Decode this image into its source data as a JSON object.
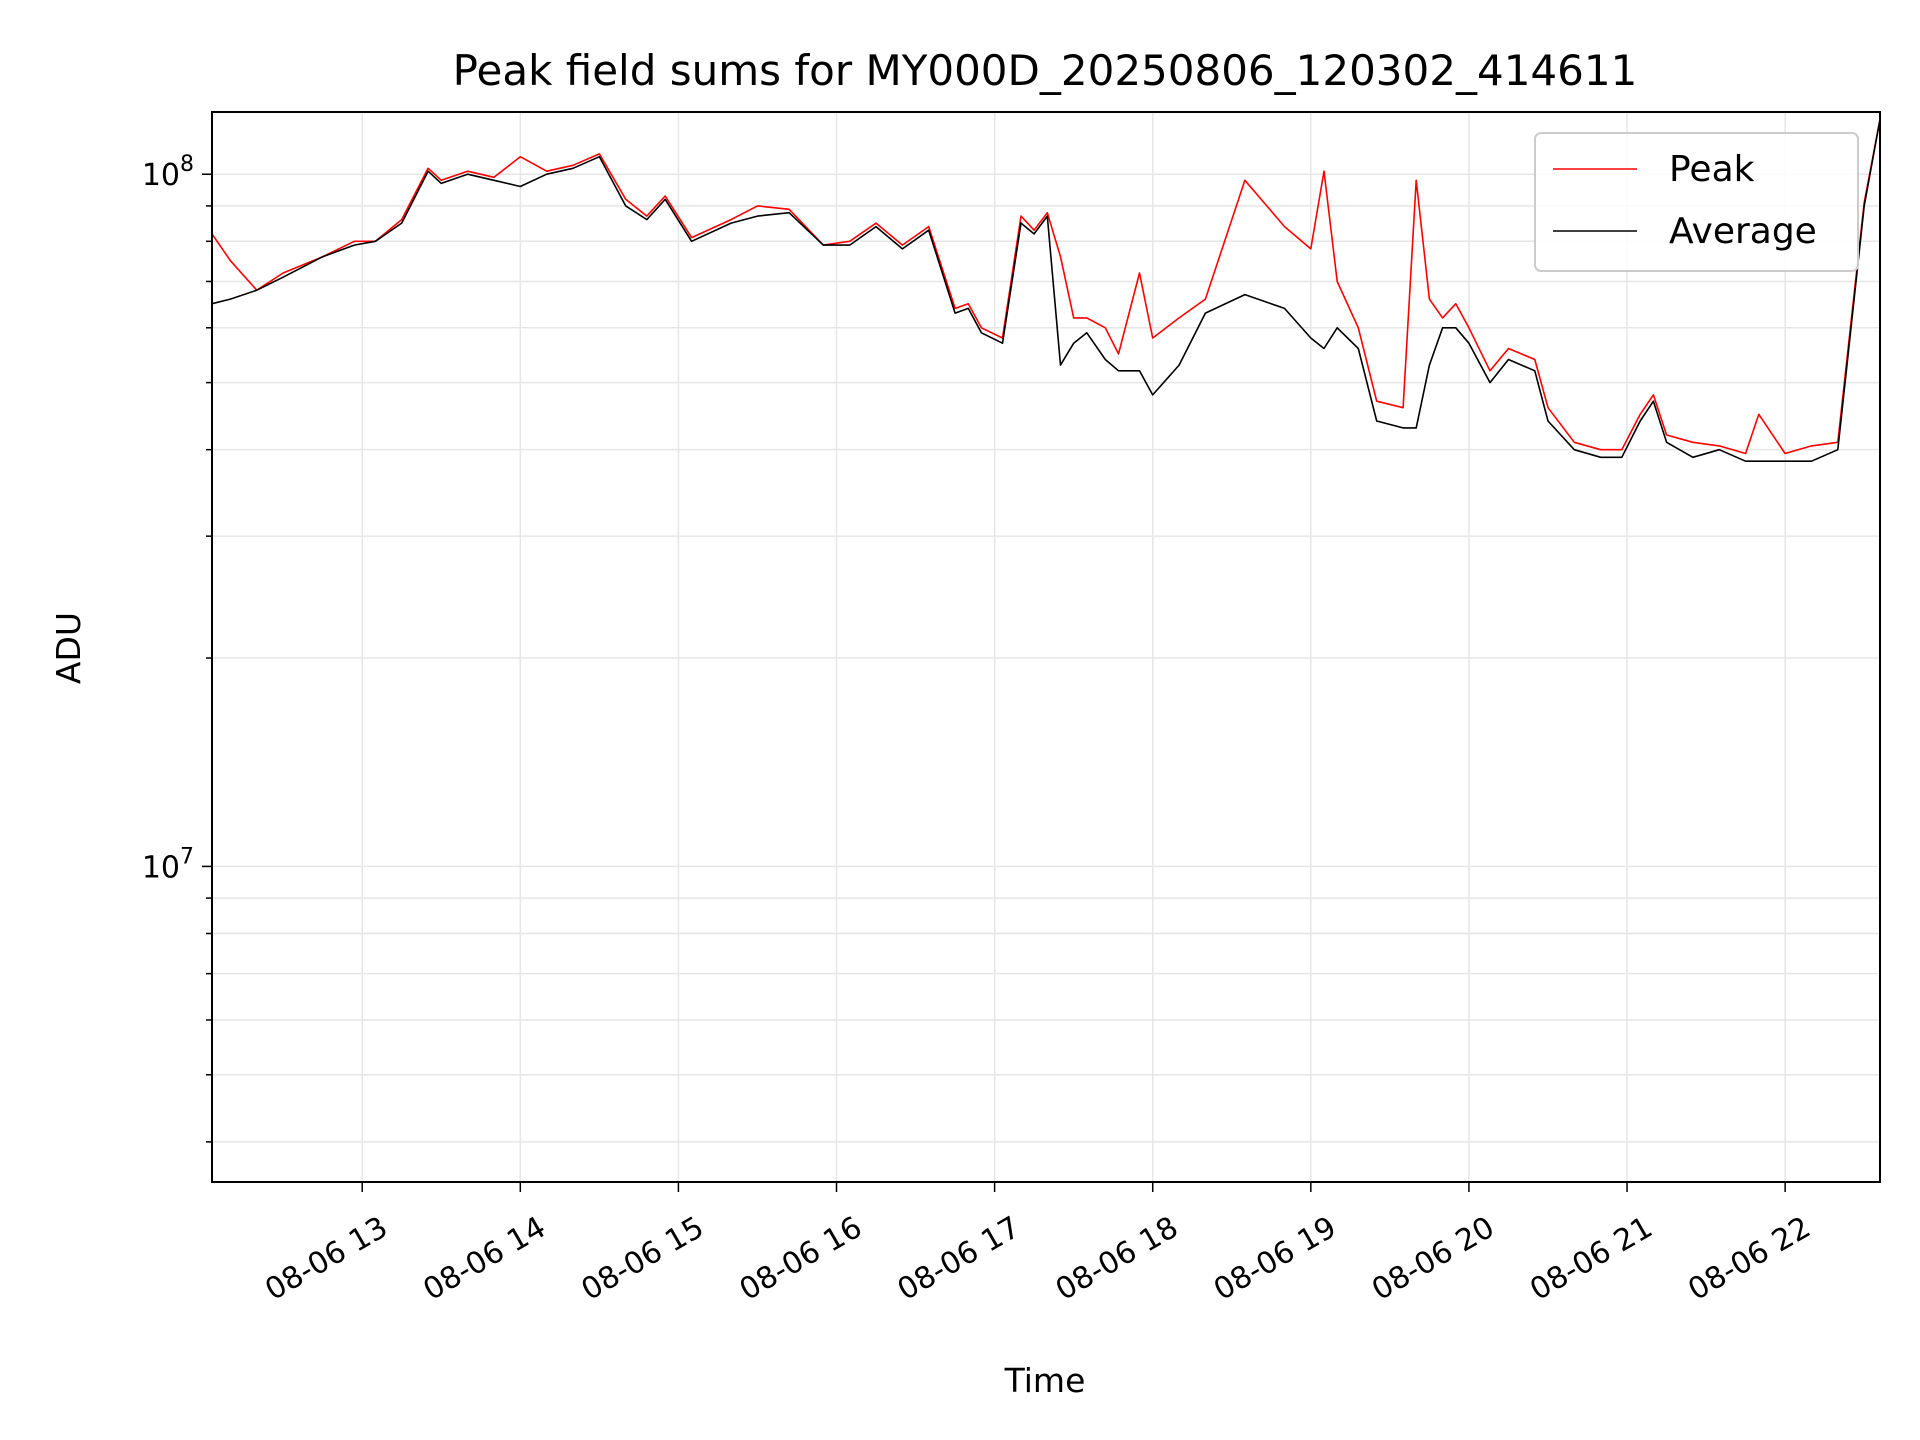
{
  "chart_data": {
    "type": "line",
    "title": "Peak field sums for MY000D_20250806_120302_414611",
    "xlabel": "Time",
    "ylabel": "ADU",
    "yscale": "log",
    "xlim": [
      "08-06 12:03",
      "08-06 22:36"
    ],
    "ylim": [
      3500000,
      123000000
    ],
    "grid": true,
    "legend_position": "top-right",
    "x_ticks": [
      "08-06 13",
      "08-06 14",
      "08-06 15",
      "08-06 16",
      "08-06 17",
      "08-06 18",
      "08-06 19",
      "08-06 20",
      "08-06 21",
      "08-06 22"
    ],
    "y_ticks": [
      {
        "label_base": "10",
        "label_exp": "7",
        "value": 10000000
      },
      {
        "label_base": "10",
        "label_exp": "8",
        "value": 100000000
      }
    ],
    "x": [
      "08-06 12:03",
      "08-06 12:10",
      "08-06 12:20",
      "08-06 12:30",
      "08-06 12:45",
      "08-06 12:57",
      "08-06 13:05",
      "08-06 13:15",
      "08-06 13:25",
      "08-06 13:30",
      "08-06 13:40",
      "08-06 13:50",
      "08-06 14:00",
      "08-06 14:10",
      "08-06 14:20",
      "08-06 14:30",
      "08-06 14:40",
      "08-06 14:48",
      "08-06 14:55",
      "08-06 15:05",
      "08-06 15:20",
      "08-06 15:30",
      "08-06 15:42",
      "08-06 15:55",
      "08-06 16:05",
      "08-06 16:15",
      "08-06 16:25",
      "08-06 16:35",
      "08-06 16:45",
      "08-06 16:50",
      "08-06 16:55",
      "08-06 17:03",
      "08-06 17:10",
      "08-06 17:15",
      "08-06 17:20",
      "08-06 17:25",
      "08-06 17:30",
      "08-06 17:35",
      "08-06 17:42",
      "08-06 17:47",
      "08-06 17:55",
      "08-06 18:00",
      "08-06 18:10",
      "08-06 18:20",
      "08-06 18:35",
      "08-06 18:50",
      "08-06 19:00",
      "08-06 19:05",
      "08-06 19:10",
      "08-06 19:18",
      "08-06 19:25",
      "08-06 19:35",
      "08-06 19:40",
      "08-06 19:45",
      "08-06 19:50",
      "08-06 19:55",
      "08-06 20:00",
      "08-06 20:08",
      "08-06 20:15",
      "08-06 20:25",
      "08-06 20:30",
      "08-06 20:40",
      "08-06 20:50",
      "08-06 20:58",
      "08-06 21:05",
      "08-06 21:10",
      "08-06 21:15",
      "08-06 21:25",
      "08-06 21:35",
      "08-06 21:45",
      "08-06 21:50",
      "08-06 22:00",
      "08-06 22:10",
      "08-06 22:20",
      "08-06 22:30",
      "08-06 22:36"
    ],
    "series": [
      {
        "name": "Average",
        "color": "#000000",
        "values": [
          65000000,
          66000000,
          68000000,
          71000000,
          76000000,
          79000000,
          80000000,
          85000000,
          101000000,
          97000000,
          100000000,
          98000000,
          96000000,
          100000000,
          102000000,
          106000000,
          90000000,
          86000000,
          92000000,
          80000000,
          85000000,
          87000000,
          88000000,
          79000000,
          79000000,
          84000000,
          78000000,
          83000000,
          63000000,
          64000000,
          59000000,
          57000000,
          85000000,
          82000000,
          87000000,
          53000000,
          57000000,
          59000000,
          54000000,
          52000000,
          52000000,
          48000000,
          53000000,
          63000000,
          67000000,
          64000000,
          58000000,
          56000000,
          60000000,
          56000000,
          44000000,
          43000000,
          43000000,
          53000000,
          60000000,
          60000000,
          57000000,
          50000000,
          54000000,
          52000000,
          44000000,
          40000000,
          39000000,
          39000000,
          44000000,
          47000000,
          41000000,
          39000000,
          40000000,
          38500000,
          38500000,
          38500000,
          38500000,
          40000000,
          90000000,
          120000000
        ]
      },
      {
        "name": "Peak",
        "color": "#ff0000",
        "values": [
          82000000,
          75000000,
          68000000,
          72000000,
          76000000,
          80000000,
          80000000,
          86000000,
          102000000,
          98000000,
          101000000,
          99000000,
          106000000,
          101000000,
          103000000,
          107000000,
          92000000,
          87000000,
          93000000,
          81000000,
          86000000,
          90000000,
          89000000,
          79000000,
          80000000,
          85000000,
          79000000,
          84000000,
          64000000,
          65000000,
          60000000,
          58000000,
          87000000,
          83000000,
          88000000,
          76000000,
          62000000,
          62000000,
          60000000,
          55000000,
          72000000,
          58000000,
          62000000,
          66000000,
          98000000,
          84000000,
          78000000,
          101000000,
          70000000,
          60000000,
          47000000,
          46000000,
          98000000,
          66000000,
          62000000,
          65000000,
          60000000,
          52000000,
          56000000,
          54000000,
          46000000,
          41000000,
          40000000,
          40000000,
          45000000,
          48000000,
          42000000,
          41000000,
          40500000,
          39500000,
          45000000,
          39500000,
          40500000,
          41000000,
          91000000,
          120000000
        ]
      }
    ]
  }
}
